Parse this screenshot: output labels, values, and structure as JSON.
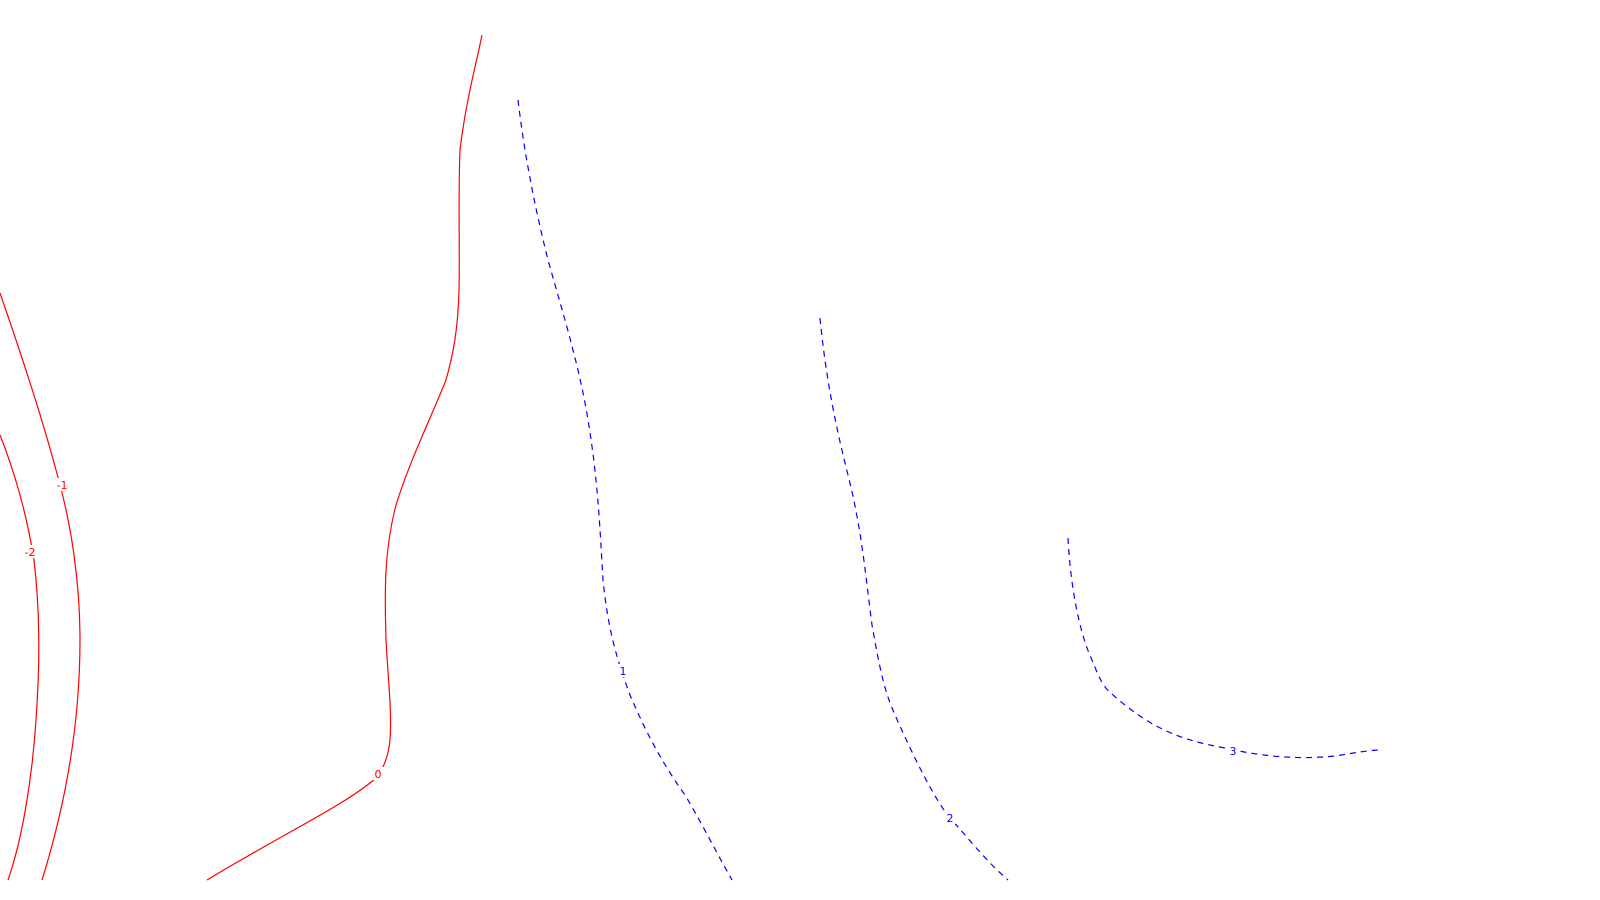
{
  "chart_data": {
    "type": "contour",
    "title": "",
    "xlabel": "",
    "ylabel": "",
    "grid": false,
    "legend": "none",
    "colors": {
      "negative": "#ff0000",
      "positive": "#0000ff"
    },
    "levels": [
      {
        "value": -2,
        "label": "-2",
        "style": "solid",
        "color": "#ff0000"
      },
      {
        "value": -1,
        "label": "-1",
        "style": "solid",
        "color": "#ff0000"
      },
      {
        "value": 0,
        "label": "0",
        "style": "solid",
        "color": "#ff0000"
      },
      {
        "value": 1,
        "label": "1",
        "style": "dashed",
        "color": "#0000ff"
      },
      {
        "value": 2,
        "label": "2",
        "style": "dashed",
        "color": "#0000ff"
      },
      {
        "value": 3,
        "label": "3",
        "style": "dashed",
        "color": "#0000ff"
      }
    ]
  }
}
